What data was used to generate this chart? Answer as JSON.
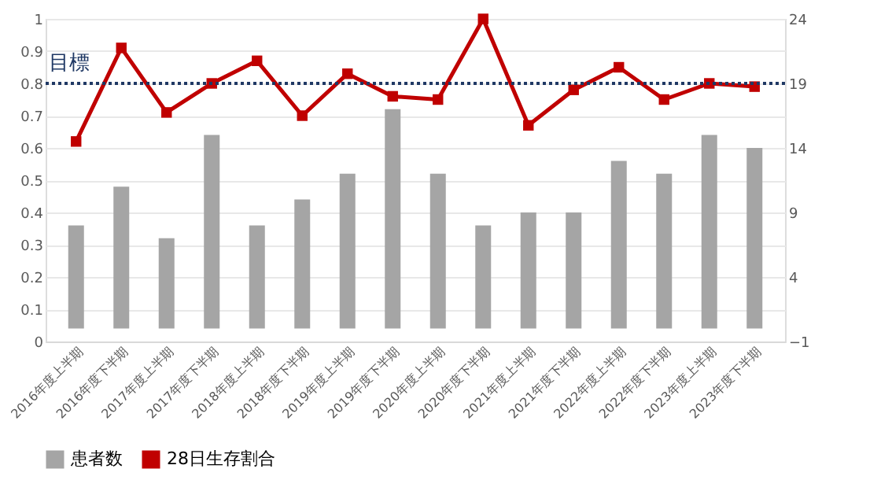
{
  "chart_data": {
    "type": "bar",
    "categories": [
      "2016年度上半期",
      "2016年度下半期",
      "2017年度上半期",
      "2017年度下半期",
      "2018年度上半期",
      "2018年度下半期",
      "2019年度上半期",
      "2019年度下半期",
      "2020年度上半期",
      "2020年度下半期",
      "2021年度上半期",
      "2021年度下半期",
      "2022年度上半期",
      "2022年度下半期",
      "2023年度上半期",
      "2023年度下半期"
    ],
    "series": [
      {
        "name": "患者数",
        "axis": "y2",
        "color": "#a5a5a5",
        "values": [
          8,
          11,
          7,
          15,
          8,
          10,
          12,
          17,
          12,
          8,
          9,
          9,
          13,
          12,
          15,
          14
        ]
      },
      {
        "name": "28日生存割合",
        "type": "line",
        "axis": "y",
        "color": "#c00000",
        "marker": "square",
        "values": [
          0.62,
          0.91,
          0.71,
          0.8,
          0.87,
          0.7,
          0.83,
          0.76,
          0.75,
          1.0,
          0.67,
          0.78,
          0.85,
          0.75,
          0.8,
          0.79
        ]
      }
    ],
    "ylim": [
      0,
      1
    ],
    "yticks": [
      0,
      0.1,
      0.2,
      0.3,
      0.4,
      0.5,
      0.6,
      0.7,
      0.8,
      0.9,
      1
    ],
    "y2lim": [
      -1,
      24
    ],
    "y2ticks": [
      -1,
      4,
      9,
      14,
      19,
      24
    ],
    "ref_lines": [
      {
        "axis": "y",
        "value": 0.8,
        "label": "目標",
        "color": "#1f3864",
        "line_style": "dotted"
      }
    ],
    "grid": "y",
    "legend": "bottom"
  }
}
